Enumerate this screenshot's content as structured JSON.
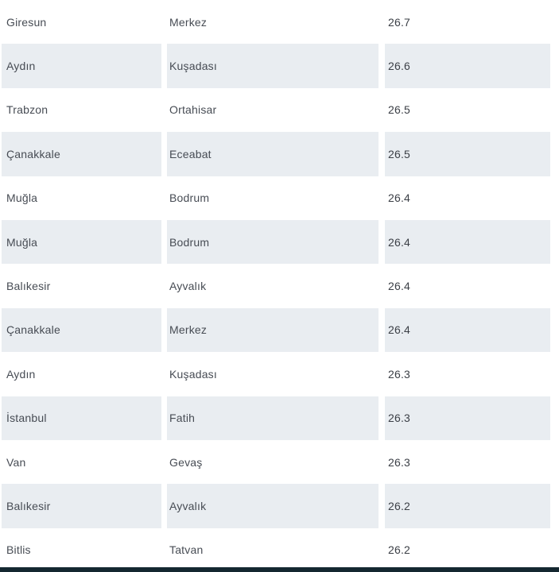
{
  "chart_data": {
    "type": "table",
    "columns": [
      "city",
      "district",
      "value"
    ],
    "rows": [
      {
        "city": "Giresun",
        "district": "Merkez",
        "value": "26.7"
      },
      {
        "city": "Aydın",
        "district": "Kuşadası",
        "value": "26.6"
      },
      {
        "city": "Trabzon",
        "district": "Ortahisar",
        "value": "26.5"
      },
      {
        "city": "Çanakkale",
        "district": "Eceabat",
        "value": "26.5"
      },
      {
        "city": "Muğla",
        "district": "Bodrum",
        "value": "26.4"
      },
      {
        "city": "Muğla",
        "district": "Bodrum",
        "value": "26.4"
      },
      {
        "city": "Balıkesir",
        "district": "Ayvalık",
        "value": "26.4"
      },
      {
        "city": "Çanakkale",
        "district": "Merkez",
        "value": "26.4"
      },
      {
        "city": "Aydın",
        "district": "Kuşadası",
        "value": "26.3"
      },
      {
        "city": "İstanbul",
        "district": "Fatih",
        "value": "26.3"
      },
      {
        "city": "Van",
        "district": "Gevaş",
        "value": "26.3"
      },
      {
        "city": "Balıkesir",
        "district": "Ayvalık",
        "value": "26.2"
      },
      {
        "city": "Bitlis",
        "district": "Tatvan",
        "value": "26.2"
      }
    ],
    "layout": {
      "grid": false,
      "row_striping": "alternate, starting with white",
      "header_visible": false
    }
  },
  "colors": {
    "row_alt_background": "#e9edf1",
    "text": "#474c54",
    "footer_bar": "#142730",
    "background": "#ffffff"
  }
}
